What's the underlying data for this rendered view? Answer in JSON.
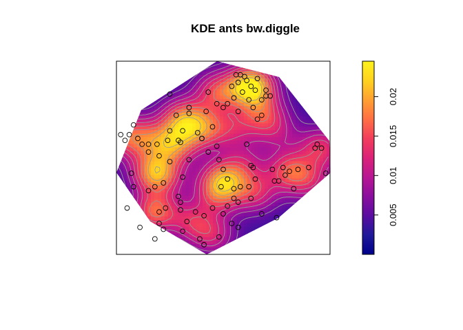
{
  "chart_data": {
    "type": "heatmap",
    "title": "KDE ants bw.diggle",
    "xlabel": "",
    "ylabel": "",
    "colorbar": {
      "range": [
        0.0,
        0.0245
      ],
      "ticks": [
        {
          "value": 0.005,
          "label": "0.005"
        },
        {
          "value": 0.01,
          "label": "0.01"
        },
        {
          "value": 0.015,
          "label": "0.015"
        },
        {
          "value": 0.02,
          "label": "0.02"
        }
      ],
      "colors": [
        "#00008B",
        "#1F1A9A",
        "#5A0DA0",
        "#8A0E9E",
        "#B81693",
        "#DB2278",
        "#F23E5C",
        "#FF6F45",
        "#FFA032",
        "#FFD21F",
        "#FFF21C"
      ]
    },
    "intensity_peaks": [
      {
        "x": 0.63,
        "y": 0.13,
        "value": 0.0245
      },
      {
        "x": 0.5,
        "y": 0.62,
        "value": 0.018
      },
      {
        "x": 0.27,
        "y": 0.43,
        "value": 0.016
      },
      {
        "x": 0.17,
        "y": 0.57,
        "value": 0.015
      },
      {
        "x": 0.18,
        "y": 0.78,
        "value": 0.016
      },
      {
        "x": 0.31,
        "y": 0.3,
        "value": 0.016
      },
      {
        "x": 0.41,
        "y": 0.35,
        "value": 0.014
      },
      {
        "x": 0.47,
        "y": 0.16,
        "value": 0.014
      },
      {
        "x": 0.69,
        "y": 0.28,
        "value": 0.013
      },
      {
        "x": 0.81,
        "y": 0.57,
        "value": 0.014
      },
      {
        "x": 0.03,
        "y": 0.39,
        "value": 0.013
      },
      {
        "x": 0.96,
        "y": 0.45,
        "value": 0.013
      },
      {
        "x": 0.65,
        "y": 0.68,
        "value": 0.012
      },
      {
        "x": 0.35,
        "y": 0.83,
        "value": 0.011
      },
      {
        "x": 0.45,
        "y": 0.9,
        "value": 0.011
      },
      {
        "x": 0.14,
        "y": 0.4,
        "value": 0.012
      },
      {
        "x": 0.91,
        "y": 0.62,
        "value": 0.01
      },
      {
        "x": 0.55,
        "y": 0.35,
        "value": 0.01
      },
      {
        "x": 0.6,
        "y": 0.53,
        "value": 0.009
      },
      {
        "x": 0.76,
        "y": 0.38,
        "value": 0.008
      },
      {
        "x": 0.47,
        "y": 0.7,
        "value": 0.01
      },
      {
        "x": 0.22,
        "y": 0.6,
        "value": 0.01
      }
    ],
    "points": [
      [
        0.54,
        0.13
      ],
      [
        0.57,
        0.11
      ],
      [
        0.59,
        0.16
      ],
      [
        0.61,
        0.1
      ],
      [
        0.63,
        0.13
      ],
      [
        0.65,
        0.15
      ],
      [
        0.6,
        0.08
      ],
      [
        0.62,
        0.2
      ],
      [
        0.66,
        0.09
      ],
      [
        0.58,
        0.07
      ],
      [
        0.55,
        0.19
      ],
      [
        0.52,
        0.22
      ],
      [
        0.7,
        0.15
      ],
      [
        0.68,
        0.2
      ],
      [
        0.72,
        0.18
      ],
      [
        0.56,
        0.07
      ],
      [
        0.5,
        0.24
      ],
      [
        0.47,
        0.22
      ],
      [
        0.45,
        0.34
      ],
      [
        0.34,
        0.27
      ],
      [
        0.28,
        0.28
      ],
      [
        0.34,
        0.24
      ],
      [
        0.25,
        0.17
      ],
      [
        0.42,
        0.26
      ],
      [
        0.43,
        0.16
      ],
      [
        0.25,
        0.36
      ],
      [
        0.31,
        0.36
      ],
      [
        0.3,
        0.42
      ],
      [
        0.38,
        0.37
      ],
      [
        0.4,
        0.4
      ],
      [
        0.43,
        0.47
      ],
      [
        0.47,
        0.44
      ],
      [
        0.48,
        0.51
      ],
      [
        0.5,
        0.56
      ],
      [
        0.52,
        0.61
      ],
      [
        0.55,
        0.66
      ],
      [
        0.58,
        0.65
      ],
      [
        0.63,
        0.71
      ],
      [
        0.62,
        0.65
      ],
      [
        0.65,
        0.61
      ],
      [
        0.64,
        0.55
      ],
      [
        0.49,
        0.65
      ],
      [
        0.55,
        0.71
      ],
      [
        0.52,
        0.75
      ],
      [
        0.57,
        0.73
      ],
      [
        0.68,
        0.79
      ],
      [
        0.74,
        0.62
      ],
      [
        0.73,
        0.56
      ],
      [
        0.79,
        0.59
      ],
      [
        0.81,
        0.57
      ],
      [
        0.85,
        0.56
      ],
      [
        0.78,
        0.55
      ],
      [
        0.76,
        0.62
      ],
      [
        0.9,
        0.55
      ],
      [
        0.94,
        0.43
      ],
      [
        0.96,
        0.45
      ],
      [
        0.93,
        0.45
      ],
      [
        0.98,
        0.58
      ],
      [
        0.83,
        0.66
      ],
      [
        0.75,
        0.81
      ],
      [
        0.63,
        0.54
      ],
      [
        0.61,
        0.43
      ],
      [
        0.66,
        0.3
      ],
      [
        0.68,
        0.28
      ],
      [
        0.64,
        0.24
      ],
      [
        0.7,
        0.18
      ],
      [
        0.57,
        0.26
      ],
      [
        0.4,
        0.4
      ],
      [
        0.34,
        0.51
      ],
      [
        0.29,
        0.41
      ],
      [
        0.24,
        0.41
      ],
      [
        0.19,
        0.43
      ],
      [
        0.15,
        0.43
      ],
      [
        0.12,
        0.43
      ],
      [
        0.1,
        0.4
      ],
      [
        0.06,
        0.38
      ],
      [
        0.04,
        0.41
      ],
      [
        0.02,
        0.38
      ],
      [
        0.08,
        0.33
      ],
      [
        0.15,
        0.47
      ],
      [
        0.2,
        0.49
      ],
      [
        0.25,
        0.52
      ],
      [
        0.31,
        0.6
      ],
      [
        0.22,
        0.63
      ],
      [
        0.18,
        0.65
      ],
      [
        0.07,
        0.58
      ],
      [
        0.08,
        0.65
      ],
      [
        0.15,
        0.67
      ],
      [
        0.29,
        0.7
      ],
      [
        0.3,
        0.73
      ],
      [
        0.2,
        0.78
      ],
      [
        0.23,
        0.76
      ],
      [
        0.3,
        0.77
      ],
      [
        0.37,
        0.78
      ],
      [
        0.45,
        0.76
      ],
      [
        0.33,
        0.83
      ],
      [
        0.2,
        0.84
      ],
      [
        0.11,
        0.86
      ],
      [
        0.05,
        0.76
      ],
      [
        0.22,
        0.87
      ],
      [
        0.18,
        0.92
      ],
      [
        0.31,
        0.88
      ],
      [
        0.41,
        0.8
      ],
      [
        0.39,
        0.92
      ],
      [
        0.41,
        0.95
      ],
      [
        0.48,
        0.91
      ],
      [
        0.54,
        0.84
      ],
      [
        0.57,
        0.86
      ],
      [
        0.5,
        0.79
      ]
    ]
  }
}
